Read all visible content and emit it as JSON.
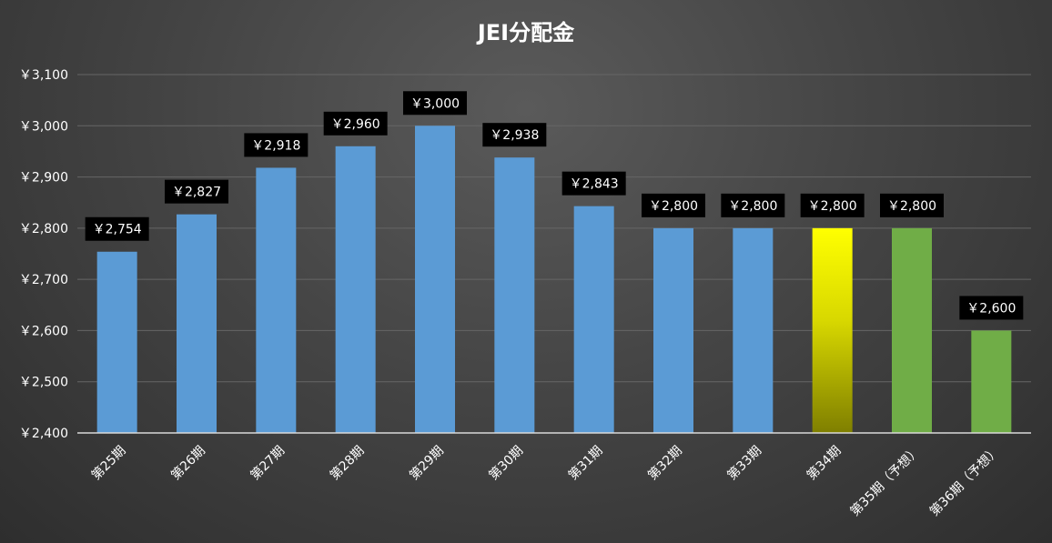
{
  "chart_data": {
    "type": "bar",
    "title": "JEI分配金",
    "xlabel": "",
    "ylabel": "",
    "ylim": [
      2400,
      3100
    ],
    "ytick_step": 100,
    "yticks": [
      "￥2,400",
      "￥2,500",
      "￥2,600",
      "￥2,700",
      "￥2,800",
      "￥2,900",
      "￥3,000",
      "￥3,100"
    ],
    "grid": true,
    "legend": "none",
    "categories": [
      "第25期",
      "第26期",
      "第27期",
      "第28期",
      "第29期",
      "第30期",
      "第31期",
      "第32期",
      "第33期",
      "第34期",
      "第35期（予想）",
      "第36期（予想）"
    ],
    "values": [
      2754,
      2827,
      2918,
      2960,
      3000,
      2938,
      2843,
      2800,
      2800,
      2800,
      2800,
      2600
    ],
    "data_labels": [
      "￥2,754",
      "￥2,827",
      "￥2,918",
      "￥2,960",
      "￥3,000",
      "￥2,938",
      "￥2,843",
      "￥2,800",
      "￥2,800",
      "￥2,800",
      "￥2,800",
      "￥2,600"
    ],
    "bar_styles": [
      "blue",
      "blue",
      "blue",
      "blue",
      "blue",
      "blue",
      "blue",
      "blue",
      "blue",
      "yellow-gradient",
      "green",
      "green"
    ],
    "colors": {
      "blue": "#5b9bd5",
      "green": "#70ad47",
      "yellow_top": "#ffff00",
      "yellow_bottom": "#7f7f00",
      "label_bg": "#000000",
      "grid": "#666666",
      "axis": "#d9d9d9",
      "text": "#ffffff"
    }
  }
}
